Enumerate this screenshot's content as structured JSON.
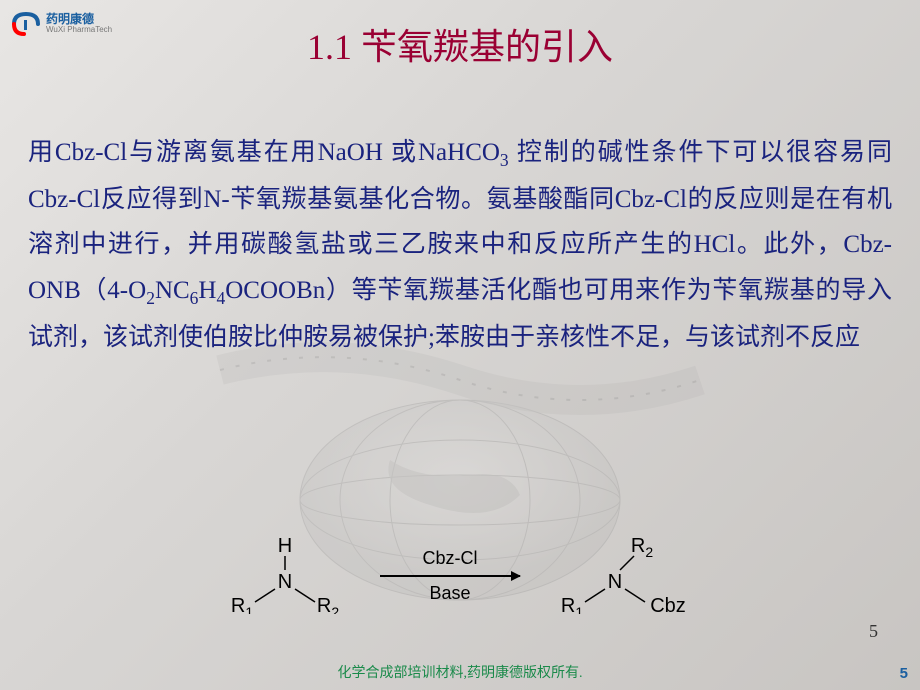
{
  "logo": {
    "name_cn": "药明康德",
    "name_en": "WuXi PharmaTech",
    "icon_color": "#1a5fa0",
    "accent_color": "#ff0000"
  },
  "title": {
    "text": "1.1 苄氧羰基的引入",
    "color": "#9a0033",
    "fontsize": 36
  },
  "body": {
    "color": "#1a237e",
    "fontsize": 25,
    "line_height": 1.82,
    "html": "用Cbz-Cl与游离氨基在用NaOH 或NaHCO<sub>3</sub> 控制的碱性条件下可以很容易同Cbz-Cl反应得到N-苄氧羰基氨基化合物。氨基酸酯同Cbz-Cl的反应则是在有机溶剂中进行，并用碳酸氢盐或三乙胺来中和反应所产生的HCl。此外，Cbz-ONB（4-O<sub>2</sub>NC<sub>6</sub>H<sub>4</sub>OCOOBn）等苄氧羰基活化酯也可用来作为苄氧羰基的导入试剂，该试剂使伯胺比仲胺易被保护;苯胺由于亲核性不足，与该试剂不反应"
  },
  "reaction": {
    "reactant": {
      "top": "H",
      "center": "N",
      "left": "R<sub>1</sub>",
      "right": "R<sub>2</sub>"
    },
    "arrow": {
      "top_label": "Cbz-Cl",
      "bottom_label": "Base"
    },
    "product": {
      "top": "R<sub>2</sub>",
      "center": "N",
      "left": "R<sub>1</sub>",
      "right": "Cbz"
    },
    "fontsize": 20,
    "color": "#000000"
  },
  "footer": {
    "text": "化学合成部培训材料,药明康德版权所有.",
    "color": "#1a8a4a",
    "fontsize": 14
  },
  "page_number_inner": "5",
  "page_number_corner": "5",
  "background": {
    "gradient_from": "#e8e6e4",
    "gradient_to": "#c8c5c2",
    "globe_opacity": 0.25
  }
}
